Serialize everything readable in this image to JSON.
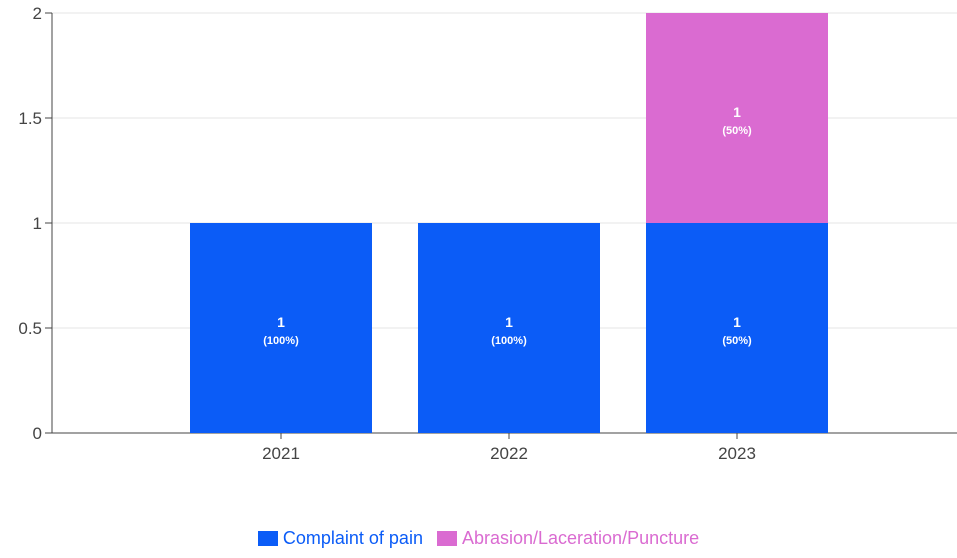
{
  "chart_data": {
    "type": "bar",
    "stacked": true,
    "categories": [
      "2021",
      "2022",
      "2023"
    ],
    "series": [
      {
        "name": "Complaint of pain",
        "color": "#0b5cf7",
        "values": [
          1,
          1,
          1
        ],
        "percent_labels": [
          "(100%)",
          "(100%)",
          "(50%)"
        ]
      },
      {
        "name": "Abrasion/Laceration/Puncture",
        "color": "#da6bd1",
        "values": [
          0,
          0,
          1
        ],
        "percent_labels": [
          "",
          "",
          "(50%)"
        ]
      }
    ],
    "y_ticks": [
      "0",
      "0.5",
      "1",
      "1.5",
      "2"
    ],
    "ylim": [
      0,
      2
    ],
    "grid": true,
    "legend_position": "bottom",
    "title": "",
    "xlabel": "",
    "ylabel": ""
  }
}
